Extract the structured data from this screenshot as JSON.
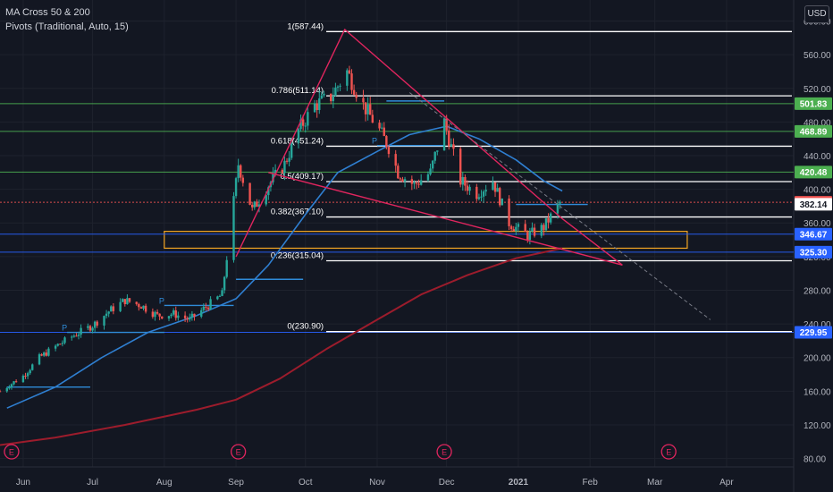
{
  "legend": {
    "ma": "MA Cross 50 & 200",
    "pivots": "Pivots (Traditional, Auto, 15)"
  },
  "currency": "USD",
  "colors": {
    "background": "#131722",
    "grid": "#1e222d",
    "up": "#26a69a",
    "down": "#ef5350",
    "ma50": "#2f7fd1",
    "ma200": "#9c1c2c",
    "wedge": "#e0255e",
    "fib": "#ffffff",
    "green_level": "#4caf50",
    "blue_level": "#2962ff",
    "pivot": "#2f8bd8",
    "zone": "#f5a623"
  },
  "chart_data": {
    "type": "candlestick",
    "ylim": [
      70,
      625
    ],
    "y_ticks": [
      "80.00",
      "120.00",
      "160.00",
      "200.00",
      "240.00",
      "280.00",
      "320.00",
      "360.00",
      "400.00",
      "440.00",
      "480.00",
      "520.00",
      "560.00",
      "600.00"
    ],
    "x_ticks": [
      {
        "label": "Jun",
        "date": "2020-06-01"
      },
      {
        "label": "Jul",
        "date": "2020-07-01"
      },
      {
        "label": "Aug",
        "date": "2020-08-01"
      },
      {
        "label": "Sep",
        "date": "2020-09-01"
      },
      {
        "label": "Oct",
        "date": "2020-10-01"
      },
      {
        "label": "Nov",
        "date": "2020-11-01"
      },
      {
        "label": "Dec",
        "date": "2020-12-01"
      },
      {
        "label": "2021",
        "date": "2021-01-01"
      },
      {
        "label": "Feb",
        "date": "2021-02-01"
      },
      {
        "label": "Mar",
        "date": "2021-03-01"
      },
      {
        "label": "Apr",
        "date": "2021-04-01"
      }
    ],
    "price_path": [
      [
        "2020-05-22",
        160
      ],
      [
        "2020-06-01",
        178
      ],
      [
        "2020-06-08",
        200
      ],
      [
        "2020-06-16",
        215
      ],
      [
        "2020-06-24",
        228
      ],
      [
        "2020-07-01",
        238
      ],
      [
        "2020-07-08",
        255
      ],
      [
        "2020-07-15",
        268
      ],
      [
        "2020-07-22",
        262
      ],
      [
        "2020-07-29",
        250
      ],
      [
        "2020-08-05",
        252
      ],
      [
        "2020-08-12",
        245
      ],
      [
        "2020-08-19",
        260
      ],
      [
        "2020-08-26",
        275
      ],
      [
        "2020-09-02",
        430
      ],
      [
        "2020-09-08",
        375
      ],
      [
        "2020-09-15",
        405
      ],
      [
        "2020-09-22",
        430
      ],
      [
        "2020-09-28",
        470
      ],
      [
        "2020-10-05",
        500
      ],
      [
        "2020-10-12",
        510
      ],
      [
        "2020-10-19",
        540
      ],
      [
        "2020-10-26",
        500
      ],
      [
        "2020-11-02",
        470
      ],
      [
        "2020-11-06",
        450
      ],
      [
        "2020-11-10",
        420
      ],
      [
        "2020-11-17",
        405
      ],
      [
        "2020-11-24",
        420
      ],
      [
        "2020-11-30",
        480
      ],
      [
        "2020-12-07",
        410
      ],
      [
        "2020-12-14",
        395
      ],
      [
        "2020-12-21",
        410
      ],
      [
        "2020-12-28",
        360
      ],
      [
        "2021-01-05",
        345
      ],
      [
        "2021-01-12",
        355
      ],
      [
        "2021-01-19",
        384
      ]
    ],
    "ma_fast": [
      [
        "2020-05-25",
        140
      ],
      [
        "2020-06-15",
        165
      ],
      [
        "2020-07-05",
        200
      ],
      [
        "2020-07-25",
        230
      ],
      [
        "2020-08-15",
        250
      ],
      [
        "2020-09-01",
        270
      ],
      [
        "2020-09-15",
        310
      ],
      [
        "2020-10-01",
        370
      ],
      [
        "2020-10-15",
        420
      ],
      [
        "2020-11-01",
        445
      ],
      [
        "2020-11-15",
        465
      ],
      [
        "2020-12-01",
        475
      ],
      [
        "2020-12-15",
        460
      ],
      [
        "2020-12-31",
        435
      ],
      [
        "2021-01-12",
        410
      ],
      [
        "2021-01-20",
        398
      ]
    ],
    "ma_slow": [
      [
        "2020-05-22",
        96
      ],
      [
        "2020-06-15",
        105
      ],
      [
        "2020-07-15",
        120
      ],
      [
        "2020-08-15",
        138
      ],
      [
        "2020-09-01",
        150
      ],
      [
        "2020-09-20",
        175
      ],
      [
        "2020-10-10",
        210
      ],
      [
        "2020-11-01",
        245
      ],
      [
        "2020-11-20",
        275
      ],
      [
        "2020-12-10",
        298
      ],
      [
        "2020-12-31",
        318
      ],
      [
        "2021-01-20",
        330
      ]
    ],
    "fib_levels": [
      {
        "ratio": "1",
        "value": 587.44,
        "label": "1(587.44)"
      },
      {
        "ratio": "0.786",
        "value": 511.14,
        "label": "0.786(511.14)"
      },
      {
        "ratio": "0.618",
        "value": 451.24,
        "label": "0.618(451.24)"
      },
      {
        "ratio": "0.5",
        "value": 409.17,
        "label": "0.5(409.17)"
      },
      {
        "ratio": "0.382",
        "value": 367.1,
        "label": "0.382(367.10)"
      },
      {
        "ratio": "0.236",
        "value": 315.04,
        "label": "0.236(315.04)"
      },
      {
        "ratio": "0",
        "value": 230.9,
        "label": "0(230.90)"
      }
    ],
    "fib_start": "2020-10-10",
    "fib_end": "2021-04-30",
    "horizontal_levels": [
      {
        "value": 501.83,
        "label": "501.83",
        "color": "#4caf50"
      },
      {
        "value": 468.89,
        "label": "468.89",
        "color": "#4caf50"
      },
      {
        "value": 420.48,
        "label": "420.48",
        "color": "#4caf50"
      },
      {
        "value": 384.53,
        "label": "384.53",
        "color": "#ef5350"
      },
      {
        "value": 382.14,
        "label": "382.14",
        "color": "#ffffff"
      },
      {
        "value": 346.67,
        "label": "346.67",
        "color": "#2962ff"
      },
      {
        "value": 325.3,
        "label": "325.30",
        "color": "#2962ff"
      },
      {
        "value": 229.95,
        "label": "229.95",
        "color": "#2962ff"
      }
    ],
    "zone": {
      "start": "2020-08-01",
      "end": "2021-03-15",
      "top": 350,
      "bottom": 330
    },
    "wedge_upper": [
      [
        "2020-09-01",
        320
      ],
      [
        "2020-10-18",
        590
      ],
      [
        "2021-01-20",
        365
      ],
      [
        "2021-02-15",
        310
      ]
    ],
    "wedge_lower": [
      [
        "2020-09-15",
        420
      ],
      [
        "2021-02-15",
        310
      ]
    ],
    "dashed_trend": [
      [
        "2020-11-15",
        515
      ],
      [
        "2021-03-25",
        245
      ]
    ],
    "pivot_segments": [
      {
        "label": "P",
        "start": "2020-06-20",
        "end": "2020-08-01",
        "value": 230
      },
      {
        "label": "",
        "start": "2020-05-25",
        "end": "2020-06-30",
        "value": 165
      },
      {
        "label": "P",
        "start": "2020-08-01",
        "end": "2020-08-31",
        "value": 262
      },
      {
        "label": "",
        "start": "2020-09-01",
        "end": "2020-09-30",
        "value": 293
      },
      {
        "label": "P",
        "start": "2020-11-01",
        "end": "2020-11-30",
        "value": 452
      },
      {
        "label": "",
        "start": "2020-11-05",
        "end": "2020-11-30",
        "value": 505
      },
      {
        "label": "",
        "start": "2020-12-31",
        "end": "2021-01-31",
        "value": 382
      }
    ],
    "earnings": [
      "2020-05-27",
      "2020-09-02",
      "2020-11-30",
      "2021-03-07"
    ]
  }
}
